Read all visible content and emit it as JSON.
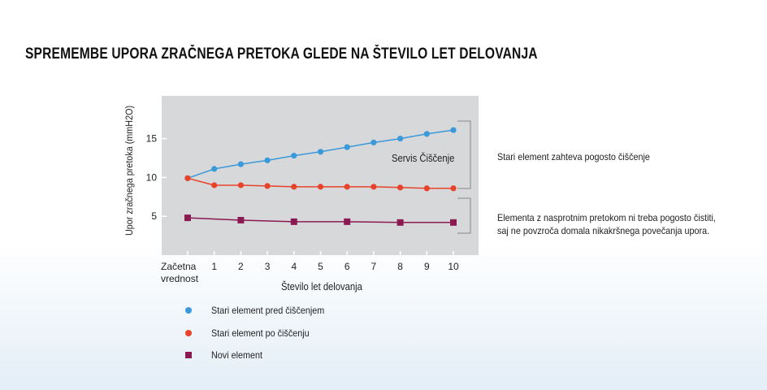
{
  "title": "SPREMEMBE UPORA ZRAČNEGA PRETOKA GLEDE NA ŠTEVILO LET DELOVANJA",
  "chart_data": {
    "type": "line",
    "x": [
      "Začetna vrednost",
      "1",
      "2",
      "3",
      "4",
      "5",
      "6",
      "7",
      "8",
      "9",
      "10"
    ],
    "xlabel": "Število let delovanja",
    "ylabel": "Upor zračnega pretoka (mmH2O)",
    "yticks": [
      5,
      10,
      15
    ],
    "ylim": [
      0,
      20.5
    ],
    "grid": false,
    "annotation": "Servis Čiščenje",
    "series": [
      {
        "name": "Stari element pred čiščenjem",
        "color": "#3a9ad9",
        "marker": "circle",
        "points": [
          [
            0,
            9.9
          ],
          [
            1,
            11.1
          ],
          [
            2,
            11.7
          ],
          [
            3,
            12.2
          ],
          [
            4,
            12.8
          ],
          [
            5,
            13.3
          ],
          [
            6,
            13.9
          ],
          [
            7,
            14.5
          ],
          [
            8,
            15.0
          ],
          [
            9,
            15.6
          ],
          [
            10,
            16.1
          ]
        ]
      },
      {
        "name": "Stari element po čiščenju",
        "color": "#e8432a",
        "marker": "circle",
        "points": [
          [
            0,
            9.9
          ],
          [
            1,
            9.0
          ],
          [
            2,
            9.0
          ],
          [
            3,
            8.9
          ],
          [
            4,
            8.8
          ],
          [
            5,
            8.8
          ],
          [
            6,
            8.8
          ],
          [
            7,
            8.8
          ],
          [
            8,
            8.7
          ],
          [
            9,
            8.6
          ],
          [
            10,
            8.6
          ]
        ]
      },
      {
        "name": "Novi element",
        "color": "#8b1a52",
        "marker": "square",
        "points": [
          [
            0,
            4.8
          ],
          [
            2,
            4.5
          ],
          [
            4,
            4.3
          ],
          [
            6,
            4.3
          ],
          [
            8,
            4.2
          ],
          [
            10,
            4.2
          ]
        ]
      }
    ]
  },
  "notes": {
    "top": "Stari element zahteva pogosto čiščenje",
    "bottom_line1": "Elementa z nasprotnim pretokom ni treba pogosto čistiti,",
    "bottom_line2": "saj ne povzroča domala nikakršnega povečanja upora."
  },
  "legend": [
    {
      "label": "Stari element pred čiščenjem",
      "color": "#3a9ad9",
      "marker": "circle"
    },
    {
      "label": "Stari element po čiščenju",
      "color": "#e8432a",
      "marker": "circle"
    },
    {
      "label": "Novi element",
      "color": "#8b1a52",
      "marker": "square"
    }
  ]
}
